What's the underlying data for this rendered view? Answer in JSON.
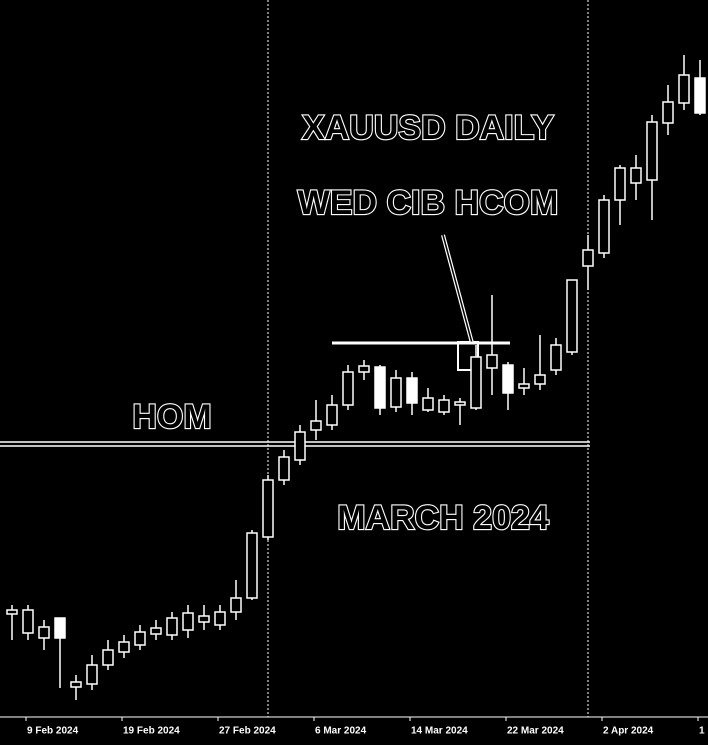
{
  "chart_data": {
    "type": "candlestick",
    "title": "XAUUSD DAILY",
    "annotations": [
      "WED CIB HCOM",
      "HOM",
      "MARCH 2024"
    ],
    "color": "#ffffff",
    "background": "#000000",
    "categories": [
      null,
      "9 Feb 2024",
      null,
      null,
      null,
      null,
      null,
      "19 Feb 2024",
      null,
      null,
      null,
      null,
      null,
      "27 Feb 2024",
      null,
      null,
      null,
      null,
      null,
      "6 Mar 2024",
      null,
      null,
      null,
      null,
      null,
      "14 Mar 2024",
      null,
      null,
      null,
      null,
      null,
      "22 Mar 2024",
      null,
      null,
      null,
      null,
      null,
      "2 Apr 2024",
      null,
      null,
      null,
      null,
      null,
      "1"
    ],
    "open": [
      2029.6,
      2018.2,
      2015.2,
      2027.2,
      1985.8,
      1987.6,
      1999,
      2006.8,
      2011,
      2017.6,
      2017,
      2020,
      2024.8,
      2023,
      2030.8,
      2039.2,
      2075.8,
      2110,
      2122,
      2140,
      2143,
      2155,
      2174.8,
      2177.8,
      2153.8,
      2171.2,
      2152,
      2150.8,
      2155,
      2153.2,
      2177.2,
      2179,
      2165.2,
      2167.6,
      2176,
      2186.8,
      2238.4,
      2246.2,
      2278,
      2288.2,
      2290,
      2324.2,
      2336.2,
      2351.2
    ],
    "high": [
      2035,
      2035,
      2026,
      2027.2,
      1993,
      2005,
      2014,
      2017,
      2023,
      2026,
      2030.8,
      2035,
      2035,
      2035,
      2050,
      2080,
      2113,
      2128,
      2143,
      2158,
      2161,
      2179,
      2182,
      2179,
      2176,
      2174.8,
      2165.2,
      2161,
      2159.2,
      2191,
      2221,
      2180.8,
      2177.2,
      2197,
      2195.2,
      2230,
      2257,
      2281,
      2299,
      2305,
      2329,
      2347,
      2365,
      2362
    ],
    "low": [
      2014,
      2014,
      2008,
      1985.2,
      1978,
      1984,
      1996,
      2003.2,
      2008,
      2014,
      2014,
      2015.2,
      2020,
      2020,
      2026,
      2038,
      2074,
      2107,
      2119,
      2134,
      2140,
      2152,
      2170,
      2149,
      2150.8,
      2149,
      2150.8,
      2149,
      2143,
      2152,
      2161,
      2152,
      2161,
      2164,
      2173,
      2185,
      2224,
      2243.2,
      2263,
      2278,
      2266,
      2317,
      2332,
      2329
    ],
    "close": [
      2032,
      2032,
      2021.8,
      2015.2,
      1988.8,
      1999,
      2008,
      2012.8,
      2018.8,
      2021.2,
      2027.2,
      2030.2,
      2028.4,
      2030.8,
      2039.2,
      2078.2,
      2110,
      2123.8,
      2138.8,
      2145.4,
      2155,
      2174.8,
      2178.4,
      2153.2,
      2171.2,
      2156.2,
      2159.2,
      2158,
      2156.8,
      2183.8,
      2185,
      2162.2,
      2167.6,
      2173,
      2191,
      2230,
      2248,
      2278,
      2297.2,
      2297.2,
      2324.8,
      2336.8,
      2353,
      2330.2
    ],
    "levels": [
      2131.6,
      2192.2
    ],
    "ylim": [
      1969,
      2398
    ]
  }
}
